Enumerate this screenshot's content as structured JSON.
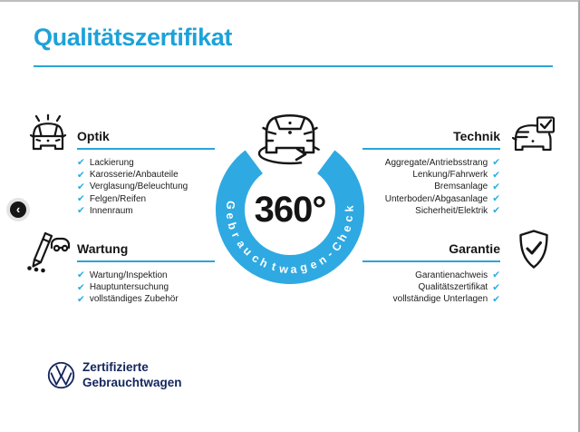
{
  "page": {
    "title": "Qualitätszertifikat"
  },
  "icons": {
    "check": "✔",
    "back_chevron": "‹"
  },
  "sections": [
    {
      "id": "optik",
      "heading": "Optik",
      "align": "left",
      "items": [
        "Lackierung",
        "Karosserie/Anbauteile",
        "Verglasung/Beleuchtung",
        "Felgen/Reifen",
        "Innenraum"
      ]
    },
    {
      "id": "technik",
      "heading": "Technik",
      "align": "right",
      "items": [
        "Aggregate/Antriebsstrang",
        "Lenkung/Fahrwerk",
        "Bremsanlage",
        "Unterboden/Abgasanlage",
        "Sicherheit/Elektrik"
      ]
    },
    {
      "id": "wartung",
      "heading": "Wartung",
      "align": "left",
      "items": [
        "Wartung/Inspektion",
        "Hauptuntersuchung",
        "vollständiges Zubehör"
      ]
    },
    {
      "id": "garantie",
      "heading": "Garantie",
      "align": "right",
      "items": [
        "Garantienachweis",
        "Qualitätszertifikat",
        "vollständige Unterlagen"
      ]
    }
  ],
  "center": {
    "degree_label": "360°",
    "ring_text": "Gebrauchtwagen-Check"
  },
  "footer": {
    "brand_line1": "Zertifizierte",
    "brand_line2": "Gebrauchtwagen"
  },
  "colors": {
    "accent_blue": "#1da2d8",
    "ring_blue": "#2fa9e2",
    "check_blue": "#29ade2",
    "brand_navy": "#13265c",
    "text_dark": "#161616"
  }
}
